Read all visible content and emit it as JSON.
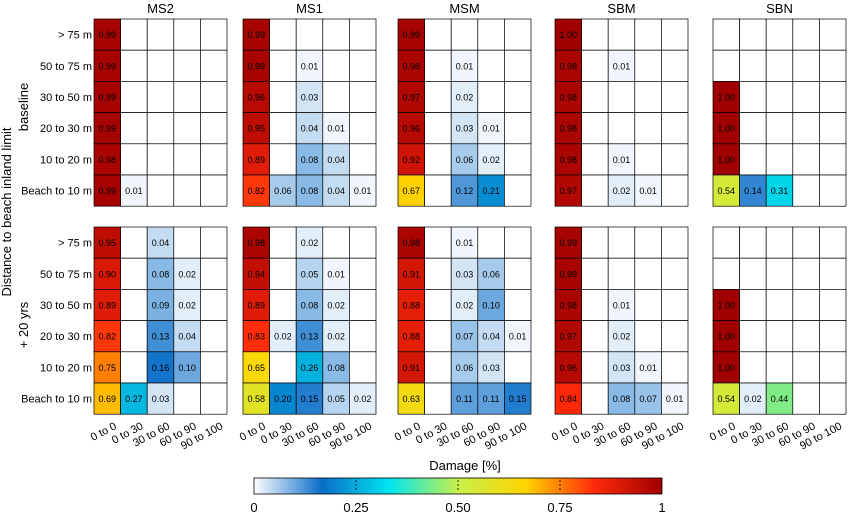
{
  "chart_data": {
    "type": "heatmap",
    "panel_titles": [
      "MS2",
      "MS1",
      "MSM",
      "SBM",
      "SBN"
    ],
    "row_group_labels": [
      "baseline",
      "+ 20 yrs"
    ],
    "y_categories": [
      "> 75 m",
      "50 to 75 m",
      "30 to 50 m",
      "20 to 30 m",
      "10 to 20 m",
      "Beach to 10 m"
    ],
    "x_categories": [
      "0 to 0",
      "0 to 30",
      "30 to 60",
      "60 to 90",
      "90 to 100"
    ],
    "xlabel": "Damage [%]",
    "ylabel": "Distance to beach inland limit",
    "colorbar": {
      "range": [
        0,
        1
      ],
      "tick_labels": [
        "0",
        "0.25",
        "0.50",
        "0.75",
        "1"
      ],
      "tick_values": [
        0,
        0.25,
        0.5,
        0.75,
        1
      ],
      "colors": [
        "#ffffff",
        "#0a6ec8",
        "#00e6f0",
        "#c8f04a",
        "#ffd400",
        "#ff2a0a",
        "#a00000"
      ]
    },
    "matrices": {
      "baseline": {
        "MS2": [
          [
            0.99,
            null,
            null,
            null,
            null
          ],
          [
            0.99,
            null,
            null,
            null,
            null
          ],
          [
            0.99,
            null,
            null,
            null,
            null
          ],
          [
            0.99,
            null,
            null,
            null,
            null
          ],
          [
            0.98,
            null,
            null,
            null,
            null
          ],
          [
            0.99,
            0.01,
            null,
            null,
            null
          ]
        ],
        "MS1": [
          [
            0.99,
            null,
            null,
            null,
            null
          ],
          [
            0.99,
            null,
            0.01,
            null,
            null
          ],
          [
            0.96,
            null,
            0.03,
            null,
            null
          ],
          [
            0.95,
            null,
            0.04,
            0.01,
            null
          ],
          [
            0.89,
            null,
            0.08,
            0.04,
            null
          ],
          [
            0.82,
            0.06,
            0.08,
            0.04,
            0.01
          ]
        ],
        "MSM": [
          [
            0.99,
            null,
            null,
            null,
            null
          ],
          [
            0.98,
            null,
            0.01,
            null,
            null
          ],
          [
            0.97,
            null,
            0.02,
            null,
            null
          ],
          [
            0.96,
            null,
            0.03,
            0.01,
            null
          ],
          [
            0.92,
            null,
            0.06,
            0.02,
            null
          ],
          [
            0.67,
            null,
            0.12,
            0.21,
            null
          ]
        ],
        "SBM": [
          [
            1.0,
            null,
            null,
            null,
            null
          ],
          [
            0.98,
            null,
            0.01,
            null,
            null
          ],
          [
            0.98,
            null,
            null,
            null,
            null
          ],
          [
            0.98,
            null,
            null,
            null,
            null
          ],
          [
            0.98,
            null,
            0.01,
            null,
            null
          ],
          [
            0.97,
            null,
            0.02,
            0.01,
            null
          ]
        ],
        "SBN": [
          [
            null,
            null,
            null,
            null,
            null
          ],
          [
            null,
            null,
            null,
            null,
            null
          ],
          [
            1.0,
            null,
            null,
            null,
            null
          ],
          [
            1.0,
            null,
            null,
            null,
            null
          ],
          [
            1.0,
            null,
            null,
            null,
            null
          ],
          [
            0.54,
            0.14,
            0.31,
            null,
            null
          ]
        ]
      },
      "plus20": {
        "MS2": [
          [
            0.95,
            null,
            0.04,
            null,
            null
          ],
          [
            0.9,
            null,
            0.08,
            0.02,
            null
          ],
          [
            0.89,
            null,
            0.09,
            0.02,
            null
          ],
          [
            0.82,
            null,
            0.13,
            0.04,
            null
          ],
          [
            0.75,
            null,
            0.16,
            0.1,
            null
          ],
          [
            0.69,
            0.27,
            0.03,
            null,
            null
          ]
        ],
        "MS1": [
          [
            0.98,
            null,
            0.02,
            null,
            null
          ],
          [
            0.94,
            null,
            0.05,
            0.01,
            null
          ],
          [
            0.89,
            null,
            0.08,
            0.02,
            null
          ],
          [
            0.83,
            0.02,
            0.13,
            0.02,
            null
          ],
          [
            0.65,
            null,
            0.26,
            0.08,
            null
          ],
          [
            0.58,
            0.2,
            0.15,
            0.05,
            0.02
          ]
        ],
        "MSM": [
          [
            0.98,
            null,
            0.01,
            null,
            null
          ],
          [
            0.91,
            null,
            0.03,
            0.06,
            null
          ],
          [
            0.88,
            null,
            0.02,
            0.1,
            null
          ],
          [
            0.88,
            null,
            0.07,
            0.04,
            0.01
          ],
          [
            0.91,
            null,
            0.06,
            0.03,
            null
          ],
          [
            0.63,
            null,
            0.11,
            0.11,
            0.15
          ]
        ],
        "SBM": [
          [
            0.99,
            null,
            null,
            null,
            null
          ],
          [
            0.99,
            null,
            null,
            null,
            null
          ],
          [
            0.98,
            null,
            0.01,
            null,
            null
          ],
          [
            0.97,
            null,
            0.02,
            null,
            null
          ],
          [
            0.96,
            null,
            0.03,
            0.01,
            null
          ],
          [
            0.84,
            null,
            0.08,
            0.07,
            0.01
          ]
        ],
        "SBN": [
          [
            null,
            null,
            null,
            null,
            null
          ],
          [
            null,
            null,
            null,
            null,
            null
          ],
          [
            1.0,
            null,
            null,
            null,
            null
          ],
          [
            1.0,
            null,
            null,
            null,
            null
          ],
          [
            1.0,
            null,
            null,
            null,
            null
          ],
          [
            0.54,
            0.02,
            0.44,
            null,
            null
          ]
        ]
      }
    }
  }
}
